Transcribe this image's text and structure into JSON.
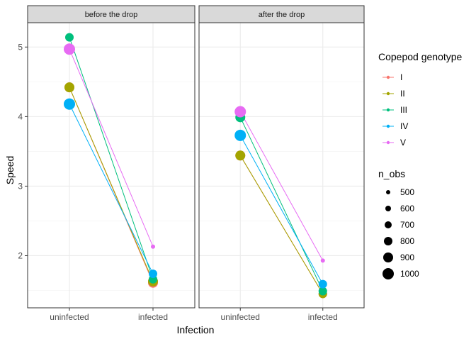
{
  "chart_data": {
    "type": "line",
    "xlabel": "Infection",
    "ylabel": "Speed",
    "categories": [
      "uninfected",
      "infected"
    ],
    "ylim": [
      1.25,
      5.35
    ],
    "yticks": [
      2,
      3,
      4,
      5
    ],
    "grid": true,
    "facets": [
      {
        "label": "before the drop",
        "series": [
          {
            "name": "I",
            "values": [
              4.42,
              1.61
            ],
            "n_obs": [
              900,
              900
            ]
          },
          {
            "name": "II",
            "values": [
              4.42,
              1.63
            ],
            "n_obs": [
              900,
              900
            ]
          },
          {
            "name": "III",
            "values": [
              5.14,
              1.66
            ],
            "n_obs": [
              800,
              800
            ]
          },
          {
            "name": "IV",
            "values": [
              4.18,
              1.74
            ],
            "n_obs": [
              1000,
              800
            ]
          },
          {
            "name": "V",
            "values": [
              4.97,
              2.13
            ],
            "n_obs": [
              1000,
              500
            ]
          }
        ]
      },
      {
        "label": "after the drop",
        "series": [
          {
            "name": "I",
            "values": [
              3.44,
              1.45
            ],
            "n_obs": [
              900,
              800
            ]
          },
          {
            "name": "II",
            "values": [
              3.44,
              1.45
            ],
            "n_obs": [
              900,
              800
            ]
          },
          {
            "name": "III",
            "values": [
              3.99,
              1.49
            ],
            "n_obs": [
              900,
              800
            ]
          },
          {
            "name": "IV",
            "values": [
              3.73,
              1.59
            ],
            "n_obs": [
              1000,
              800
            ]
          },
          {
            "name": "V",
            "values": [
              4.07,
              1.93
            ],
            "n_obs": [
              1000,
              500
            ]
          }
        ]
      }
    ],
    "legend_color": {
      "title": "Copepod genotype",
      "placement": "right",
      "items": [
        {
          "label": "I",
          "color": "#F8766D"
        },
        {
          "label": "II",
          "color": "#A3A500"
        },
        {
          "label": "III",
          "color": "#00BF7D"
        },
        {
          "label": "IV",
          "color": "#00B0F6"
        },
        {
          "label": "V",
          "color": "#E76BF3"
        }
      ]
    },
    "legend_size": {
      "title": "n_obs",
      "placement": "right",
      "items": [
        "500",
        "600",
        "700",
        "800",
        "900",
        "1000"
      ],
      "range": [
        500,
        1000
      ]
    }
  }
}
